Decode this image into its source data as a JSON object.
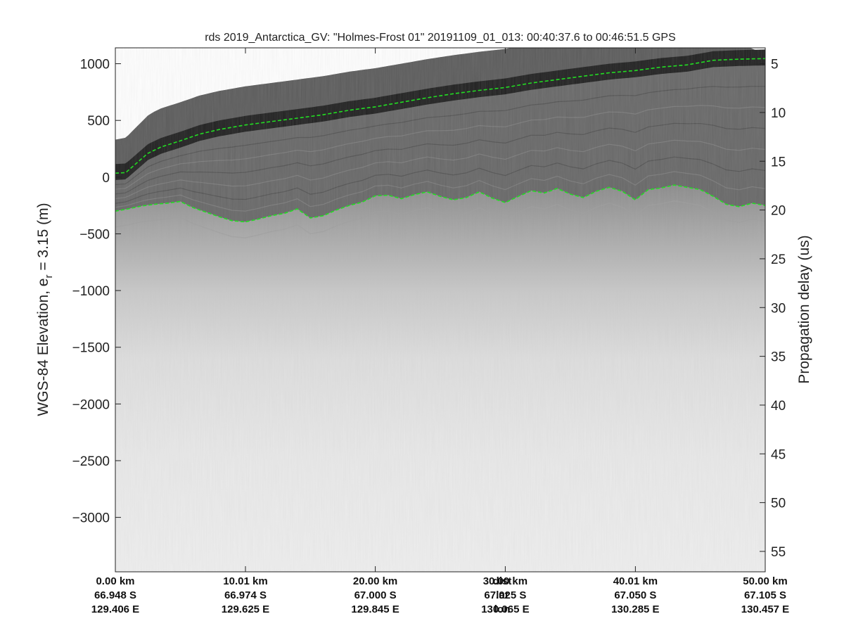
{
  "chart_data": {
    "type": "radargram",
    "title": "rds 2019_Antarctica_GV: \"Holmes-Frost 01\"  20191109_01_013: 00:40:37.6 to 00:46:51.5 GPS",
    "ylabel_main": "WGS-84 Elevation, e",
    "ylabel_sub": "r",
    "ylabel_rest": " = 3.15 (m)",
    "y2label": "Propagation delay (us)",
    "ylim": [
      -3480,
      1140
    ],
    "y_ticks": [
      1000,
      500,
      0,
      -500,
      -1000,
      -1500,
      -2000,
      -2500,
      -3000
    ],
    "y_tick_labels": [
      "1000",
      "500",
      "0",
      "−500",
      "−1000",
      "−1500",
      "−2000",
      "−2500",
      "−3000"
    ],
    "y2_ticks": [
      5,
      10,
      15,
      20,
      25,
      30,
      35,
      40,
      45,
      50,
      55
    ],
    "y2_tick_labels": [
      "5",
      "10",
      "15",
      "20",
      "25",
      "30",
      "35",
      "40",
      "45",
      "50",
      "55"
    ],
    "y2_map": {
      "delay_a": 5,
      "elev_a": 1000,
      "delay_b": 55,
      "elev_b": -3300
    },
    "xlim_km": [
      0,
      50
    ],
    "x_ticks_km": [
      0,
      10.01,
      20.0,
      30.0,
      40.01,
      50.0
    ],
    "x_dist_labels": [
      "0.00 km",
      "10.01 km",
      "20.00 km",
      "30.00 km",
      "40.01 km",
      "50.00 km"
    ],
    "x_lat_labels": [
      "66.948 S",
      "66.974 S",
      "67.000 S",
      "67.025 S",
      "67.050 S",
      "67.105 S"
    ],
    "x_lon_labels": [
      "129.406 E",
      "129.625 E",
      "129.845 E",
      "130.065 E",
      "130.285 E",
      "130.457 E"
    ],
    "row_labels": [
      "dist",
      "lat",
      "lon"
    ],
    "row_label_x_km": 25.0,
    "series": [
      {
        "color": "#22dd22",
        "style": "dashed",
        "x": [
          0,
          0.8,
          1.5,
          2.5,
          3.5,
          5,
          6.5,
          8,
          10,
          12,
          14,
          16,
          18,
          20,
          22,
          24,
          26,
          28,
          30,
          32,
          34,
          36,
          38,
          40,
          42,
          44,
          46,
          48,
          50
        ],
        "y": [
          35,
          40,
          110,
          210,
          265,
          320,
          380,
          420,
          460,
          490,
          520,
          550,
          590,
          620,
          660,
          700,
          735,
          765,
          790,
          830,
          860,
          890,
          920,
          940,
          970,
          990,
          1030,
          1040,
          1045
        ]
      },
      {
        "color": "#22dd22",
        "style": "dashed",
        "x": [
          0,
          1,
          2,
          3,
          4,
          5,
          6,
          7,
          8,
          9,
          10,
          11,
          12,
          13,
          14,
          15,
          16,
          17,
          18,
          19,
          20,
          21,
          22,
          23,
          24,
          25,
          26,
          27,
          28,
          29,
          30,
          31,
          32,
          33,
          34,
          35,
          36,
          37,
          38,
          39,
          40,
          41,
          42,
          43,
          44,
          45,
          46,
          47,
          48,
          49,
          50
        ],
        "y": [
          -300,
          -280,
          -255,
          -240,
          -230,
          -215,
          -270,
          -310,
          -350,
          -385,
          -395,
          -370,
          -340,
          -320,
          -280,
          -360,
          -340,
          -290,
          -250,
          -220,
          -165,
          -160,
          -190,
          -155,
          -130,
          -170,
          -200,
          -180,
          -130,
          -185,
          -225,
          -170,
          -120,
          -140,
          -100,
          -150,
          -180,
          -125,
          -90,
          -125,
          -200,
          -110,
          -95,
          -70,
          -90,
          -110,
          -170,
          -240,
          -260,
          -230,
          -250
        ]
      }
    ]
  }
}
